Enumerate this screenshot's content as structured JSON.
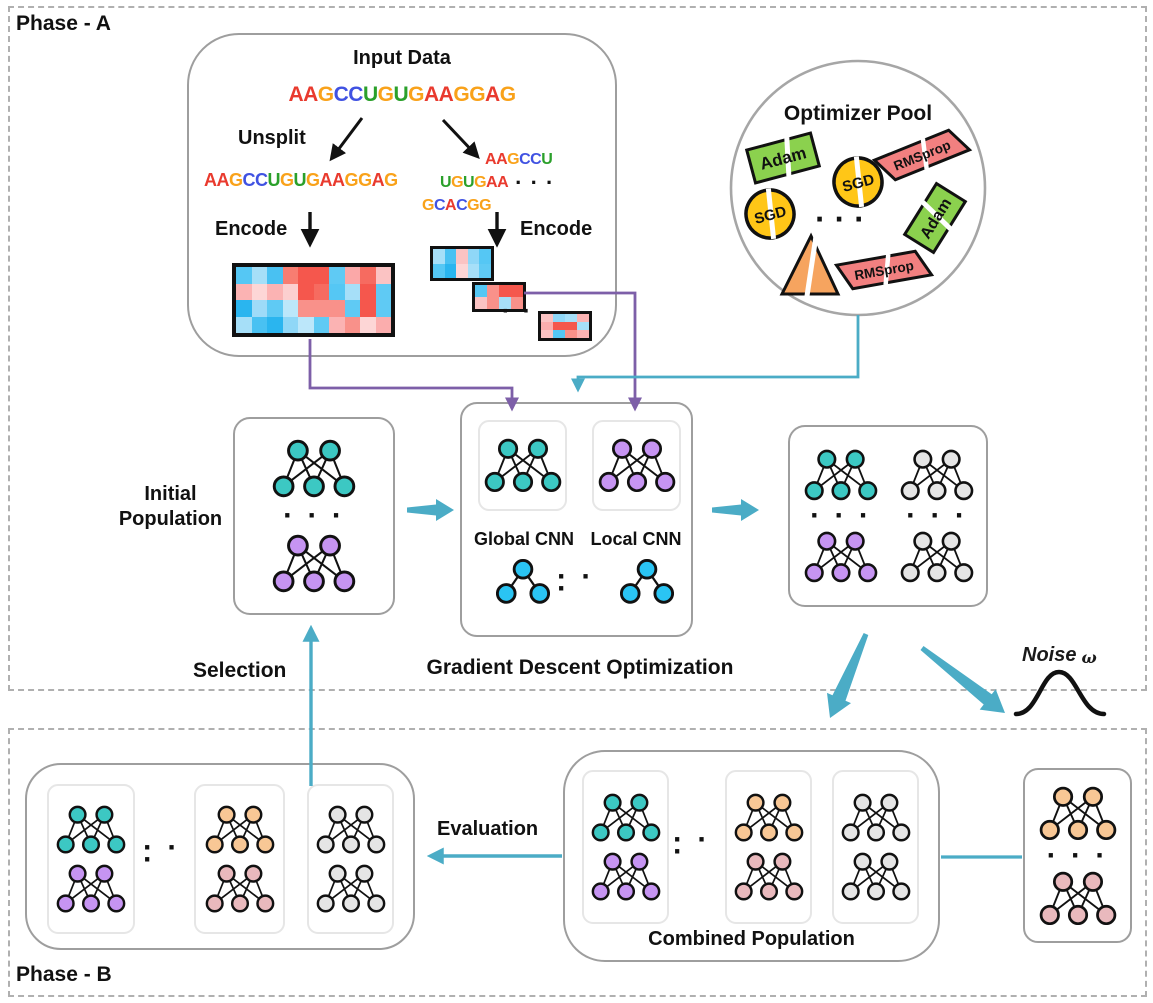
{
  "colors": {
    "teal_accent": "#4BACC6",
    "purple_accent": "#7D5FA8",
    "box_border": "#9E9E9E",
    "node_stroke": "#111111",
    "optimizer_green": "#8BD14E",
    "optimizer_yellow": "#FFC617",
    "optimizer_salmon": "#F28080",
    "optimizer_orange": "#F6A45F"
  },
  "nucleotide_colors": {
    "A": "#E93A2E",
    "U": "#2BA02B",
    "G": "#F9A21A",
    "C": "#4052E2"
  },
  "net_colors": {
    "teal": "#3CC8C3",
    "purple": "#C694F2",
    "cyan": "#2AC4F3",
    "orange": "#F8C795",
    "rose": "#E9B9BD",
    "gray": "#E5E5E5"
  },
  "misc": {
    "dots3": "· · ·",
    "dots2": "· ·"
  },
  "phase_a": {
    "label": "Phase - A",
    "input_box": {
      "title": "Input Data",
      "main_sequence": "AAGCCUGUGAAGGAG",
      "unsplit_label": "Unsplit",
      "unsplit_sequence": "AAGCCUGUGAAGGAG",
      "split_sequences": [
        "AAGCCU",
        "UGUGAA",
        "GCACGG"
      ],
      "encode_left_label": "Encode",
      "encode_right_label": "Encode",
      "heatmaps": {
        "large": {
          "cols": 10,
          "cells": [
            "#55C7F4",
            "#A6DFF8",
            "#49C1F2",
            "#F87D71",
            "#F5574D",
            "#F5574D",
            "#5FCAF4",
            "#FBA8A8",
            "#F66B60",
            "#FBC3C3",
            "#FBB3B3",
            "#FDD6D6",
            "#FBB3B3",
            "#FCCFCF",
            "#F5574D",
            "#F66B60",
            "#55C7F4",
            "#A6DFF8",
            "#F5574D",
            "#5FCAF4",
            "#2AB5EF",
            "#9EDBF8",
            "#5FCAF4",
            "#BCE7FA",
            "#F9918A",
            "#F9918A",
            "#F9918A",
            "#5FCAF4",
            "#F5574D",
            "#5FCAF4",
            "#A6DFF8",
            "#49C1F2",
            "#2AB5EF",
            "#8FD7F7",
            "#BCE7FA",
            "#5FCAF4",
            "#FBB3B3",
            "#F9918A",
            "#FDD6D6",
            "#FBADAD"
          ]
        },
        "small1": {
          "cols": 5,
          "cells": [
            "#A6DFF8",
            "#49C1F2",
            "#FBC3C3",
            "#8FD7F7",
            "#55C7F4",
            "#55C7F4",
            "#2AB5EF",
            "#FDD6D6",
            "#A6DFF8",
            "#5FCAF4"
          ]
        },
        "small2": {
          "cols": 4,
          "cells": [
            "#55C7F4",
            "#F9918A",
            "#F5574D",
            "#F5574D",
            "#FBC3C3",
            "#F9918A",
            "#A6DFF8",
            "#F9918A"
          ]
        },
        "small3": {
          "cols": 4,
          "cells": [
            "#FBC3C3",
            "#8FD7F7",
            "#A6DFF8",
            "#FBB3B3",
            "#FBADAD",
            "#F5574D",
            "#F5574D",
            "#A6DFF8",
            "#FBC3C3",
            "#55C7F4",
            "#F9918A",
            "#FBB3B3"
          ]
        }
      }
    },
    "optimizer_pool": {
      "title": "Optimizer Pool",
      "dots": "· · ·",
      "items": {
        "adam1": "Adam",
        "rmsprop1": "RMSprop",
        "sgd1": "SGD",
        "sgd2": "SGD",
        "adam2": "Adam",
        "rmsprop2": "RMSprop"
      }
    },
    "initial_population": {
      "label": "Initial Population",
      "networks": [
        "teal",
        "purple"
      ]
    },
    "gdo": {
      "label": "Gradient Descent Optimization",
      "global_label": "Global CNN",
      "local_label": "Local CNN",
      "global_net": "teal",
      "local_net": "purple",
      "tree_color": "cyan"
    },
    "offspring_box": {
      "columns": [
        [
          "teal",
          "purple"
        ],
        [
          "gray",
          "gray"
        ]
      ]
    },
    "noise_label": "Noise",
    "noise_symbol": "ω"
  },
  "phase_b": {
    "label": "Phase - B",
    "selection_label": "Selection",
    "evaluation_label": "Evaluation",
    "selected_box": {
      "groups": [
        [
          "teal",
          "purple"
        ],
        [
          "orange",
          "rose"
        ],
        [
          "gray",
          "gray"
        ]
      ]
    },
    "combined_box": {
      "label": "Combined Population",
      "groups": [
        [
          "teal",
          "purple"
        ],
        [
          "orange",
          "rose"
        ],
        [
          "gray",
          "gray"
        ]
      ]
    },
    "noise_box": {
      "networks": [
        "orange",
        "rose"
      ]
    }
  }
}
